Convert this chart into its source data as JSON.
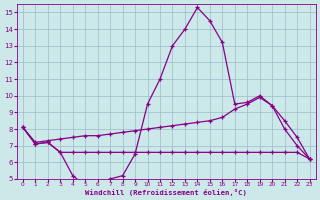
{
  "xlabel": "Windchill (Refroidissement éolien,°C)",
  "xlim": [
    -0.5,
    23.5
  ],
  "ylim": [
    5,
    15.5
  ],
  "yticks": [
    5,
    6,
    7,
    8,
    9,
    10,
    11,
    12,
    13,
    14,
    15
  ],
  "xticks": [
    0,
    1,
    2,
    3,
    4,
    5,
    6,
    7,
    8,
    9,
    10,
    11,
    12,
    13,
    14,
    15,
    16,
    17,
    18,
    19,
    20,
    21,
    22,
    23
  ],
  "bg_color": "#cce8e8",
  "grid_color": "#99bbcc",
  "line_color": "#880088",
  "line1_y": [
    8.1,
    7.1,
    7.2,
    6.6,
    5.2,
    4.6,
    4.8,
    5.0,
    5.2,
    6.5,
    9.5,
    11.0,
    13.0,
    14.0,
    15.3,
    14.5,
    13.2,
    9.5,
    9.6,
    10.0,
    9.4,
    8.0,
    7.0,
    6.2
  ],
  "line2_y": [
    8.1,
    7.2,
    7.3,
    7.4,
    7.5,
    7.6,
    7.6,
    7.7,
    7.8,
    7.9,
    8.0,
    8.1,
    8.2,
    8.3,
    8.4,
    8.5,
    8.7,
    9.2,
    9.5,
    9.9,
    9.4,
    8.5,
    7.5,
    6.2
  ],
  "line3_y": [
    8.1,
    7.1,
    7.2,
    6.6,
    6.6,
    6.6,
    6.6,
    6.6,
    6.6,
    6.6,
    6.6,
    6.6,
    6.6,
    6.6,
    6.6,
    6.6,
    6.6,
    6.6,
    6.6,
    6.6,
    6.6,
    6.6,
    6.6,
    6.2
  ]
}
